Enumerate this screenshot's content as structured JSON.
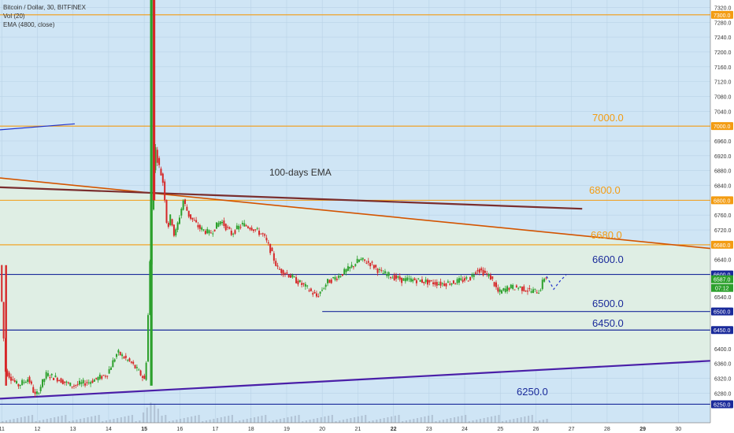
{
  "header": {
    "title": "Bitcoin / Dollar, 30, BITFINEX",
    "indicators": [
      "Vol (20)",
      "EMA (4800, close)"
    ]
  },
  "colors": {
    "background": "#cfe5f5",
    "wedge_fill": "#dfeee4",
    "orange": "#f39c12",
    "navy": "#1a2a9a",
    "blue": "#2233cc",
    "trend_orange": "#d35400",
    "ema": "#7a2e2e",
    "support_purple": "#4a1fa8",
    "candle_up": "#2ca02c",
    "candle_down": "#d62728"
  },
  "chart_data": {
    "type": "candlestick",
    "ylim": [
      6200,
      7340
    ],
    "x_ticks": [
      "11",
      "12",
      "13",
      "14",
      "15",
      "16",
      "17",
      "18",
      "19",
      "20",
      "21",
      "22",
      "23",
      "24",
      "25",
      "26",
      "27",
      "28",
      "29",
      "30"
    ],
    "y_ticks": [
      "6200.0",
      "6250.0",
      "6280.0",
      "6320.0",
      "6360.0",
      "6400.0",
      "6450.0",
      "6500.0",
      "6540.0",
      "6587.0",
      "6600.0",
      "6640.0",
      "6680.0",
      "6720.0",
      "6760.0",
      "6800.0",
      "6840.0",
      "6880.0",
      "6920.0",
      "6960.0",
      "7000.0",
      "7040.0",
      "7080.0",
      "7120.0",
      "7160.0",
      "7200.0",
      "7240.0",
      "7280.0",
      "7300.0",
      "7320.0"
    ],
    "current_price": "6587.0",
    "countdown": "07:12",
    "horizontal_levels": [
      {
        "value": 7300,
        "label": "",
        "tag": "7300.0",
        "color": "#f39c12"
      },
      {
        "value": 7000,
        "label": "7000.0",
        "tag": "7000.0",
        "color": "#f39c12"
      },
      {
        "value": 6800,
        "label": "6800.0",
        "tag": "6800.0",
        "color": "#f39c12"
      },
      {
        "value": 6680,
        "label": "6680.0",
        "tag": "6680.0",
        "color": "#f39c12"
      },
      {
        "value": 6600,
        "label": "6600.0",
        "tag": "6600.0",
        "color": "#1a2a9a"
      },
      {
        "value": 6500,
        "label": "6500.0",
        "tag": "6500.0",
        "color": "#1a2a9a"
      },
      {
        "value": 6450,
        "label": "6450.0",
        "tag": "6450.0",
        "color": "#1a2a9a"
      },
      {
        "value": 6250,
        "label": "6250.0",
        "tag": "6250.0",
        "color": "#1a2a9a"
      }
    ],
    "annotations": [
      "100-days EMA"
    ],
    "trendlines": [
      {
        "name": "descending resistance",
        "from": [
          10.95,
          6860
        ],
        "to": [
          30.9,
          6670
        ]
      },
      {
        "name": "ascending support",
        "from": [
          10.95,
          6265
        ],
        "to": [
          30.9,
          6367
        ]
      },
      {
        "name": "ema",
        "from": [
          10.95,
          6835
        ],
        "to": [
          27.3,
          6777
        ]
      },
      {
        "name": "blue segment",
        "from": [
          10.95,
          6990
        ],
        "to": [
          13.05,
          7006
        ]
      }
    ],
    "price_path": [
      [
        11.0,
        6625
      ],
      [
        11.15,
        6340
      ],
      [
        11.5,
        6300
      ],
      [
        11.8,
        6320
      ],
      [
        12.0,
        6270
      ],
      [
        12.3,
        6330
      ],
      [
        12.6,
        6320
      ],
      [
        13.0,
        6300
      ],
      [
        13.5,
        6310
      ],
      [
        14.0,
        6330
      ],
      [
        14.3,
        6390
      ],
      [
        14.7,
        6360
      ],
      [
        15.0,
        6325
      ],
      [
        15.05,
        6310
      ],
      [
        15.12,
        6380
      ],
      [
        15.2,
        6600
      ],
      [
        15.27,
        6790
      ],
      [
        15.35,
        6950
      ],
      [
        15.42,
        6910
      ],
      [
        15.5,
        6880
      ],
      [
        15.6,
        6840
      ],
      [
        15.7,
        6720
      ],
      [
        15.8,
        6760
      ],
      [
        15.9,
        6700
      ],
      [
        16.0,
        6740
      ],
      [
        16.15,
        6800
      ],
      [
        16.3,
        6760
      ],
      [
        16.6,
        6725
      ],
      [
        16.9,
        6710
      ],
      [
        17.2,
        6745
      ],
      [
        17.5,
        6710
      ],
      [
        17.8,
        6735
      ],
      [
        18.1,
        6725
      ],
      [
        18.4,
        6705
      ],
      [
        18.6,
        6665
      ],
      [
        18.8,
        6615
      ],
      [
        19.1,
        6600
      ],
      [
        19.3,
        6585
      ],
      [
        19.6,
        6565
      ],
      [
        19.9,
        6540
      ],
      [
        20.2,
        6580
      ],
      [
        20.5,
        6595
      ],
      [
        20.8,
        6615
      ],
      [
        21.1,
        6640
      ],
      [
        21.4,
        6630
      ],
      [
        21.7,
        6605
      ],
      [
        22.0,
        6595
      ],
      [
        22.3,
        6585
      ],
      [
        22.7,
        6585
      ],
      [
        23.0,
        6580
      ],
      [
        23.4,
        6575
      ],
      [
        23.8,
        6580
      ],
      [
        24.2,
        6590
      ],
      [
        24.4,
        6615
      ],
      [
        24.6,
        6605
      ],
      [
        24.8,
        6590
      ],
      [
        25.0,
        6550
      ],
      [
        25.3,
        6565
      ],
      [
        25.6,
        6565
      ],
      [
        25.9,
        6555
      ],
      [
        26.15,
        6555
      ],
      [
        26.3,
        6595
      ]
    ],
    "projection": [
      [
        26.3,
        6595
      ],
      [
        26.5,
        6560
      ],
      [
        26.7,
        6585
      ],
      [
        26.85,
        6598
      ]
    ],
    "spike": {
      "x": 15.2,
      "low": 6300,
      "high": 7340
    }
  }
}
